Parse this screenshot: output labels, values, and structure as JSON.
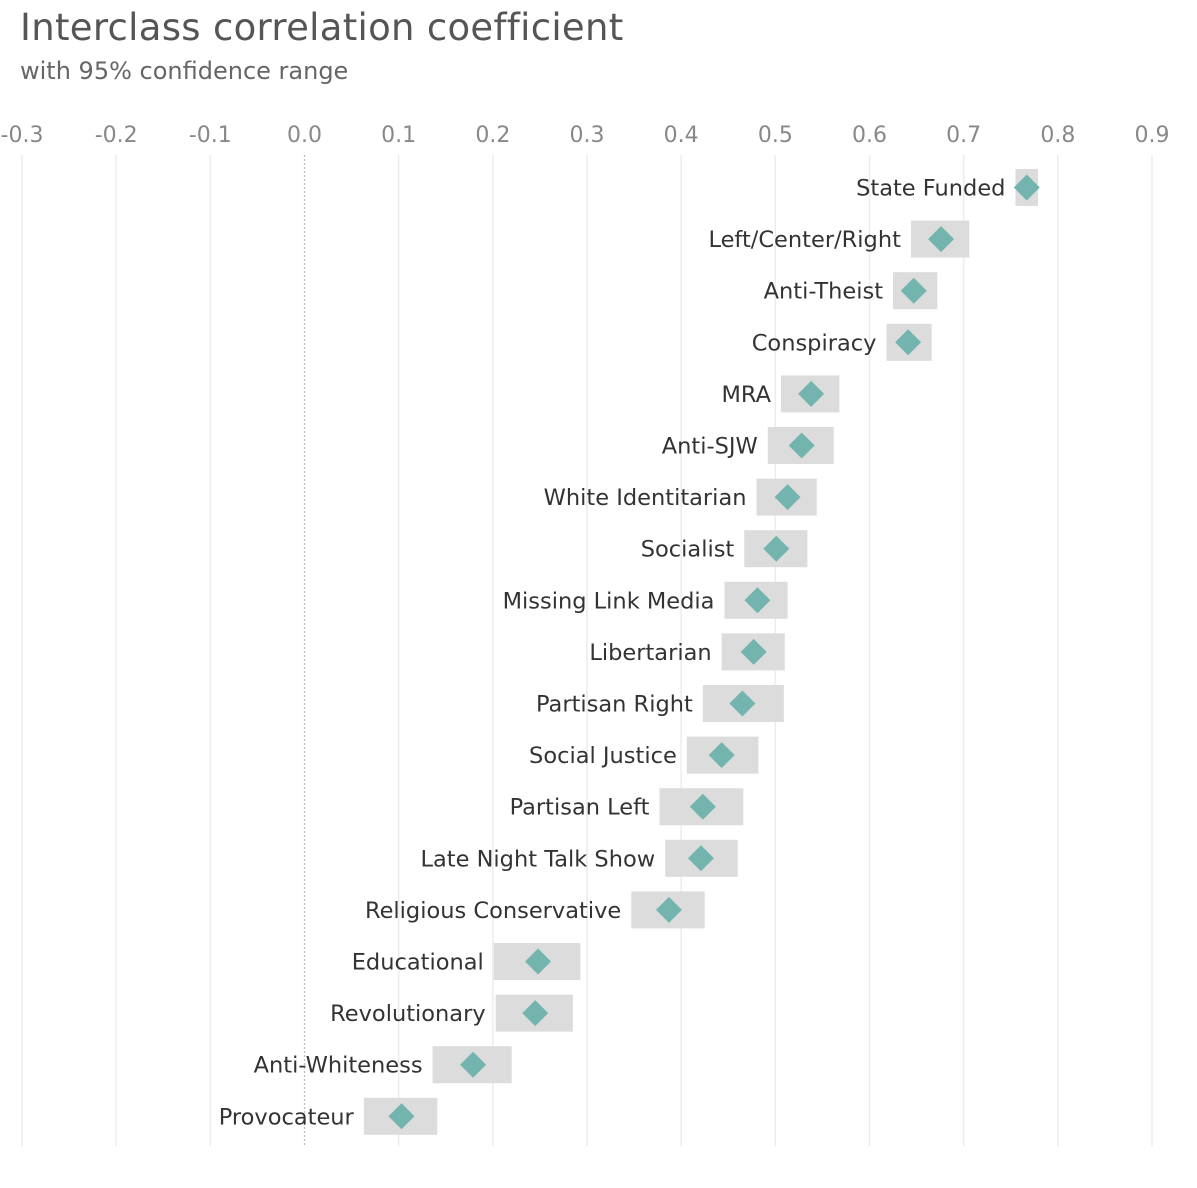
{
  "chart_data": {
    "type": "dot-range",
    "title": "Interclass correlation coefficient",
    "subtitle": "with 95% confidence range",
    "xlim": [
      -0.3,
      0.9
    ],
    "ticks": [
      -0.3,
      -0.2,
      -0.1,
      0.0,
      0.1,
      0.2,
      0.3,
      0.4,
      0.5,
      0.6,
      0.7,
      0.8,
      0.9
    ],
    "tick_labels": [
      "-0.3",
      "-0.2",
      "-0.1",
      "0.0",
      "0.1",
      "0.2",
      "0.3",
      "0.4",
      "0.5",
      "0.6",
      "0.7",
      "0.8",
      "0.9"
    ],
    "grid": true,
    "reference_line": 0.0,
    "colors": {
      "marker": "#73b5ae",
      "range": "#dcdcdc",
      "grid": "#ececec",
      "reference": "#bbbbbb"
    },
    "categories": [
      "State Funded",
      "Left/Center/Right",
      "Anti-Theist",
      "Conspiracy",
      "MRA",
      "Anti-SJW",
      "White Identitarian",
      "Socialist",
      "Missing Link Media",
      "Libertarian",
      "Partisan Right",
      "Social Justice",
      "Partisan Left",
      "Late Night Talk Show",
      "Religious Conservative",
      "Educational",
      "Revolutionary",
      "Anti-Whiteness",
      "Provocateur"
    ],
    "values": [
      0.767,
      0.676,
      0.647,
      0.641,
      0.538,
      0.528,
      0.513,
      0.501,
      0.481,
      0.477,
      0.465,
      0.443,
      0.423,
      0.421,
      0.387,
      0.248,
      0.245,
      0.179,
      0.103
    ],
    "lower": [
      0.755,
      0.644,
      0.625,
      0.618,
      0.506,
      0.492,
      0.48,
      0.467,
      0.446,
      0.443,
      0.423,
      0.406,
      0.377,
      0.383,
      0.347,
      0.201,
      0.203,
      0.136,
      0.063
    ],
    "upper": [
      0.779,
      0.706,
      0.672,
      0.666,
      0.568,
      0.562,
      0.544,
      0.534,
      0.513,
      0.51,
      0.509,
      0.482,
      0.466,
      0.46,
      0.425,
      0.293,
      0.285,
      0.22,
      0.141
    ]
  }
}
